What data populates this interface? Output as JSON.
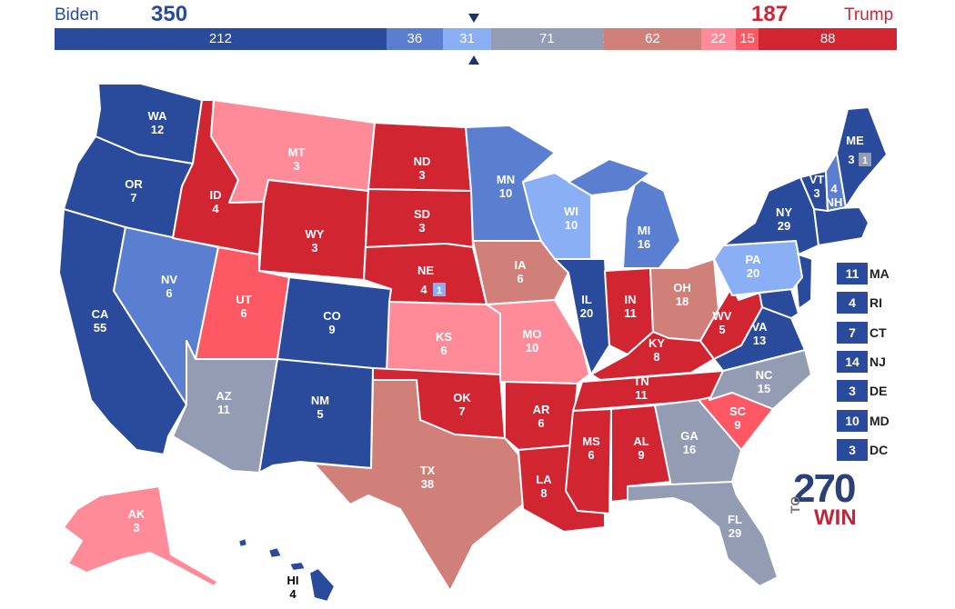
{
  "header": {
    "biden_label": "Biden",
    "trump_label": "Trump",
    "biden_total": "350",
    "trump_total": "187"
  },
  "bar": [
    {
      "label": "212",
      "value": 212,
      "color": "#2a4b9b"
    },
    {
      "label": "36",
      "value": 36,
      "color": "#5b7fd0"
    },
    {
      "label": "31",
      "value": 31,
      "color": "#8aaff5"
    },
    {
      "label": "71",
      "value": 71,
      "color": "#949cb3"
    },
    {
      "label": "1",
      "value": 1,
      "color": "#949cb3"
    },
    {
      "label": "62",
      "value": 62,
      "color": "#d18079"
    },
    {
      "label": "22",
      "value": 22,
      "color": "#ff8b98"
    },
    {
      "label": "15",
      "value": 15,
      "color": "#ff5865"
    },
    {
      "label": "88",
      "value": 88,
      "color": "#d22532"
    }
  ],
  "colors": {
    "safe_d": "#2a4b9b",
    "likely_d": "#5b7fd0",
    "lean_d": "#8aaff5",
    "tossup": "#949cb3",
    "tilt_r": "#d18079",
    "lean_r": "#ff8b98",
    "likely_r": "#ff5865",
    "safe_r": "#d22532"
  },
  "states": {
    "WA": {
      "abbr": "WA",
      "ev": "12"
    },
    "OR": {
      "abbr": "OR",
      "ev": "7"
    },
    "CA": {
      "abbr": "CA",
      "ev": "55"
    },
    "ID": {
      "abbr": "ID",
      "ev": "4"
    },
    "NV": {
      "abbr": "NV",
      "ev": "6"
    },
    "MT": {
      "abbr": "MT",
      "ev": "3"
    },
    "WY": {
      "abbr": "WY",
      "ev": "3"
    },
    "UT": {
      "abbr": "UT",
      "ev": "6"
    },
    "AZ": {
      "abbr": "AZ",
      "ev": "11"
    },
    "CO": {
      "abbr": "CO",
      "ev": "9"
    },
    "NM": {
      "abbr": "NM",
      "ev": "5"
    },
    "ND": {
      "abbr": "ND",
      "ev": "3"
    },
    "SD": {
      "abbr": "SD",
      "ev": "3"
    },
    "NE": {
      "abbr": "NE",
      "ev": "4",
      "district": "1"
    },
    "KS": {
      "abbr": "KS",
      "ev": "6"
    },
    "OK": {
      "abbr": "OK",
      "ev": "7"
    },
    "TX": {
      "abbr": "TX",
      "ev": "38"
    },
    "MN": {
      "abbr": "MN",
      "ev": "10"
    },
    "IA": {
      "abbr": "IA",
      "ev": "6"
    },
    "MO": {
      "abbr": "MO",
      "ev": "10"
    },
    "AR": {
      "abbr": "AR",
      "ev": "6"
    },
    "LA": {
      "abbr": "LA",
      "ev": "8"
    },
    "WI": {
      "abbr": "WI",
      "ev": "10"
    },
    "IL": {
      "abbr": "IL",
      "ev": "20"
    },
    "MI": {
      "abbr": "MI",
      "ev": "16"
    },
    "IN": {
      "abbr": "IN",
      "ev": "11"
    },
    "OH": {
      "abbr": "OH",
      "ev": "18"
    },
    "KY": {
      "abbr": "KY",
      "ev": "8"
    },
    "TN": {
      "abbr": "TN",
      "ev": "11"
    },
    "MS": {
      "abbr": "MS",
      "ev": "6"
    },
    "AL": {
      "abbr": "AL",
      "ev": "9"
    },
    "GA": {
      "abbr": "GA",
      "ev": "16"
    },
    "FL": {
      "abbr": "FL",
      "ev": "29"
    },
    "SC": {
      "abbr": "SC",
      "ev": "9"
    },
    "NC": {
      "abbr": "NC",
      "ev": "15"
    },
    "VA": {
      "abbr": "VA",
      "ev": "13"
    },
    "WV": {
      "abbr": "WV",
      "ev": "5"
    },
    "PA": {
      "abbr": "PA",
      "ev": "20"
    },
    "NY": {
      "abbr": "NY",
      "ev": "29"
    },
    "VT": {
      "abbr": "VT",
      "ev": "3"
    },
    "NH": {
      "abbr": "NH",
      "ev": "4"
    },
    "ME": {
      "abbr": "ME",
      "ev": "3",
      "district": "1"
    },
    "AK": {
      "abbr": "AK",
      "ev": "3"
    },
    "HI": {
      "abbr": "HI",
      "ev": "4"
    }
  },
  "northeast": [
    {
      "ev": "11",
      "abbr": "MA"
    },
    {
      "ev": "4",
      "abbr": "RI"
    },
    {
      "ev": "7",
      "abbr": "CT"
    },
    {
      "ev": "14",
      "abbr": "NJ"
    },
    {
      "ev": "3",
      "abbr": "DE"
    },
    {
      "ev": "10",
      "abbr": "MD"
    },
    {
      "ev": "3",
      "abbr": "DC"
    }
  ],
  "logo": {
    "number": "270",
    "to": "TO",
    "win": "WIN"
  }
}
